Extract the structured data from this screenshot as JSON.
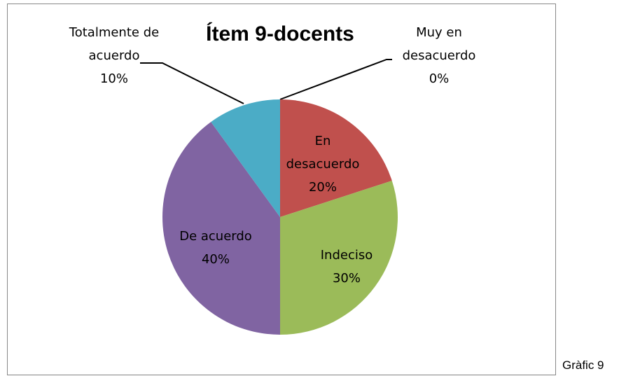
{
  "chart_data": {
    "type": "pie",
    "title": "Ítem 9-docents",
    "categories": [
      "Muy en desacuerdo",
      "En desacuerdo",
      "Indeciso",
      "De acuerdo",
      "Totalmente de acuerdo"
    ],
    "values": [
      0,
      20,
      30,
      40,
      10
    ],
    "value_labels": [
      "0%",
      "20%",
      "30%",
      "40%",
      "10%"
    ],
    "colors": [
      "#4f81bd",
      "#c0504d",
      "#9bbb59",
      "#8064a2",
      "#4bacc6"
    ]
  },
  "caption": "Gràfic 9"
}
